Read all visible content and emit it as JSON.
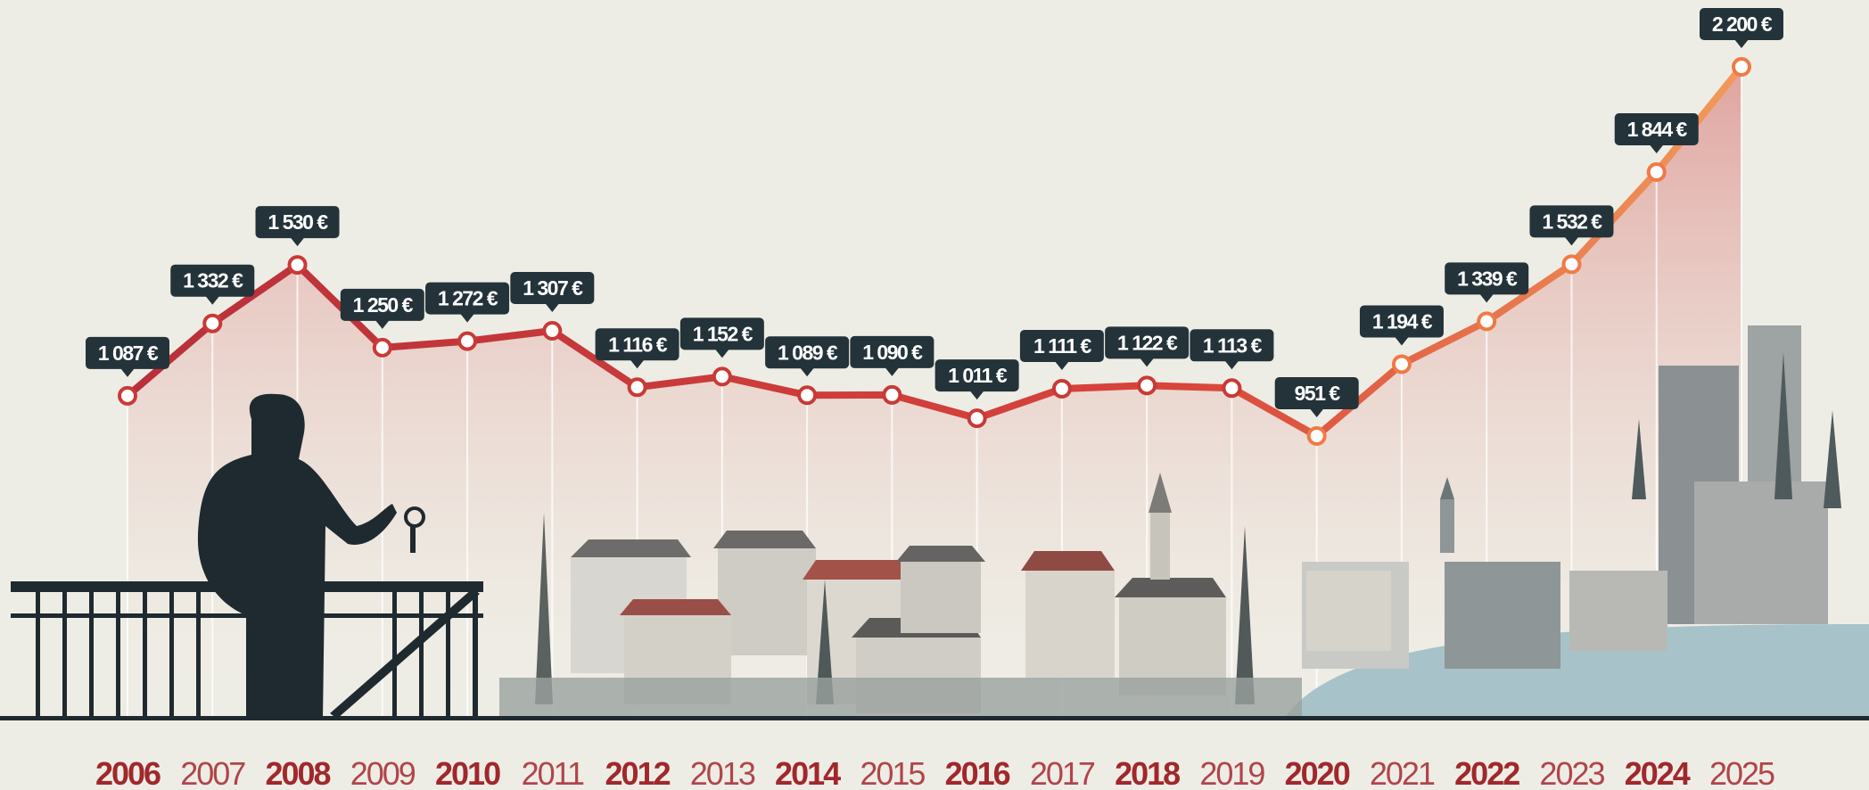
{
  "chart_data": {
    "type": "line",
    "categories": [
      "2006",
      "2007",
      "2008",
      "2009",
      "2010",
      "2011",
      "2012",
      "2013",
      "2014",
      "2015",
      "2016",
      "2017",
      "2018",
      "2019",
      "2020",
      "2021",
      "2022",
      "2023",
      "2024",
      "2025"
    ],
    "series": [
      {
        "color": "#c83a36",
        "values": [
          1087,
          1332,
          1530,
          1250,
          1272,
          1307,
          1116,
          1152,
          1089,
          1090,
          1011,
          1111,
          1122,
          1113,
          951,
          1194,
          1339,
          1532,
          1844,
          2200
        ],
        "value_labels": [
          "1 087 €",
          "1 332 €",
          "1 530 €",
          "1 250 €",
          "1 272 €",
          "1 307 €",
          "1 116 €",
          "1 152 €",
          "1 089 €",
          "1 090 €",
          "1 011 €",
          "1 111 €",
          "1 122 €",
          "1 113 €",
          "951 €",
          "1 194 €",
          "1 339 €",
          "1 532 €",
          "1 844 €",
          "2 200 €"
        ]
      }
    ]
  }
}
